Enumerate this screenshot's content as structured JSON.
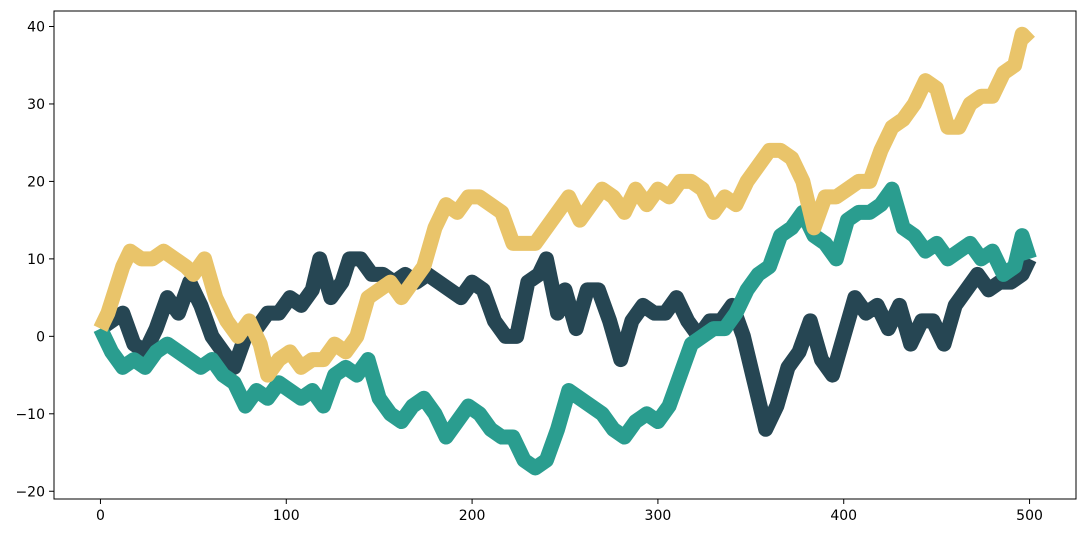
{
  "chart_data": {
    "type": "line",
    "title": "",
    "xlabel": "",
    "ylabel": "",
    "xlim": [
      -25,
      525
    ],
    "ylim": [
      -21,
      42
    ],
    "xticks": [
      0,
      100,
      200,
      300,
      400,
      500
    ],
    "yticks": [
      -20,
      -10,
      0,
      10,
      20,
      30,
      40
    ],
    "grid": false,
    "legend": "none",
    "series": [
      {
        "color": "#264653",
        "x": [
          0,
          6,
          12,
          18,
          24,
          30,
          36,
          42,
          48,
          54,
          60,
          66,
          72,
          78,
          84,
          90,
          96,
          102,
          108,
          114,
          118,
          124,
          130,
          134,
          140,
          146,
          152,
          158,
          164,
          170,
          176,
          182,
          188,
          194,
          200,
          206,
          212,
          218,
          224,
          230,
          236,
          240,
          246,
          250,
          256,
          262,
          268,
          274,
          280,
          286,
          292,
          298,
          304,
          310,
          316,
          322,
          328,
          334,
          340,
          346,
          352,
          358,
          364,
          370,
          376,
          382,
          388,
          394,
          400,
          406,
          412,
          418,
          424,
          430,
          436,
          442,
          448,
          454,
          460,
          466,
          472,
          478,
          484,
          490,
          496,
          500
        ],
        "y": [
          1,
          2,
          3,
          -1,
          -2,
          1,
          5,
          3,
          7,
          4,
          0,
          -2,
          -4,
          0,
          1,
          3,
          3,
          5,
          4,
          6,
          10,
          5,
          7,
          10,
          10,
          8,
          8,
          7,
          8,
          7,
          8,
          7,
          6,
          5,
          7,
          6,
          2,
          0,
          0,
          7,
          8,
          10,
          3,
          6,
          1,
          6,
          6,
          2,
          -3,
          2,
          4,
          3,
          3,
          5,
          2,
          0,
          2,
          2,
          4,
          0,
          -6,
          -12,
          -9,
          -4,
          -2,
          2,
          -3,
          -5,
          0,
          5,
          3,
          4,
          1,
          4,
          -1,
          2,
          2,
          -1,
          4,
          6,
          8,
          6,
          7,
          7,
          8,
          10
        ]
      },
      {
        "color": "#2a9d8f",
        "x": [
          0,
          6,
          12,
          18,
          24,
          30,
          36,
          42,
          48,
          54,
          60,
          66,
          72,
          78,
          84,
          90,
          96,
          102,
          108,
          114,
          120,
          126,
          132,
          138,
          144,
          150,
          156,
          162,
          168,
          174,
          180,
          186,
          192,
          198,
          204,
          210,
          216,
          222,
          228,
          234,
          240,
          246,
          252,
          258,
          264,
          270,
          276,
          282,
          288,
          294,
          300,
          306,
          312,
          318,
          324,
          330,
          336,
          342,
          348,
          354,
          360,
          366,
          372,
          378,
          384,
          390,
          396,
          402,
          408,
          414,
          420,
          426,
          432,
          438,
          444,
          450,
          456,
          462,
          468,
          474,
          480,
          486,
          492,
          496,
          500
        ],
        "y": [
          1,
          -2,
          -4,
          -3,
          -4,
          -2,
          -1,
          -2,
          -3,
          -4,
          -3,
          -5,
          -6,
          -9,
          -7,
          -8,
          -6,
          -7,
          -8,
          -7,
          -9,
          -5,
          -4,
          -5,
          -3,
          -8,
          -10,
          -11,
          -9,
          -8,
          -10,
          -13,
          -11,
          -9,
          -10,
          -12,
          -13,
          -13,
          -16,
          -17,
          -16,
          -12,
          -7,
          -8,
          -9,
          -10,
          -12,
          -13,
          -11,
          -10,
          -11,
          -9,
          -5,
          -1,
          0,
          1,
          1,
          3,
          6,
          8,
          9,
          13,
          14,
          16,
          13,
          12,
          10,
          15,
          16,
          16,
          17,
          19,
          14,
          13,
          11,
          12,
          10,
          11,
          12,
          10,
          11,
          8,
          9,
          13,
          10
        ]
      },
      {
        "color": "#e9c46a",
        "x": [
          0,
          4,
          8,
          12,
          16,
          22,
          28,
          34,
          40,
          46,
          50,
          56,
          62,
          68,
          74,
          80,
          86,
          90,
          96,
          102,
          108,
          114,
          120,
          126,
          132,
          138,
          144,
          150,
          156,
          162,
          168,
          174,
          180,
          186,
          192,
          198,
          204,
          210,
          216,
          222,
          228,
          234,
          240,
          246,
          252,
          258,
          264,
          270,
          276,
          282,
          288,
          294,
          300,
          306,
          312,
          318,
          324,
          330,
          336,
          342,
          348,
          354,
          360,
          366,
          372,
          378,
          384,
          390,
          396,
          402,
          408,
          414,
          420,
          426,
          432,
          438,
          444,
          450,
          456,
          462,
          468,
          474,
          480,
          486,
          492,
          496,
          500
        ],
        "y": [
          1,
          3,
          6,
          9,
          11,
          10,
          10,
          11,
          10,
          9,
          8,
          10,
          5,
          2,
          0,
          2,
          -1,
          -5,
          -3,
          -2,
          -4,
          -3,
          -3,
          -1,
          -2,
          0,
          5,
          6,
          7,
          5,
          7,
          9,
          14,
          17,
          16,
          18,
          18,
          17,
          16,
          12,
          12,
          12,
          14,
          16,
          18,
          15,
          17,
          19,
          18,
          16,
          19,
          17,
          19,
          18,
          20,
          20,
          19,
          16,
          18,
          17,
          20,
          22,
          24,
          24,
          23,
          20,
          14,
          18,
          18,
          19,
          20,
          20,
          24,
          27,
          28,
          30,
          33,
          32,
          27,
          27,
          30,
          31,
          31,
          34,
          35,
          39,
          38
        ]
      }
    ]
  }
}
